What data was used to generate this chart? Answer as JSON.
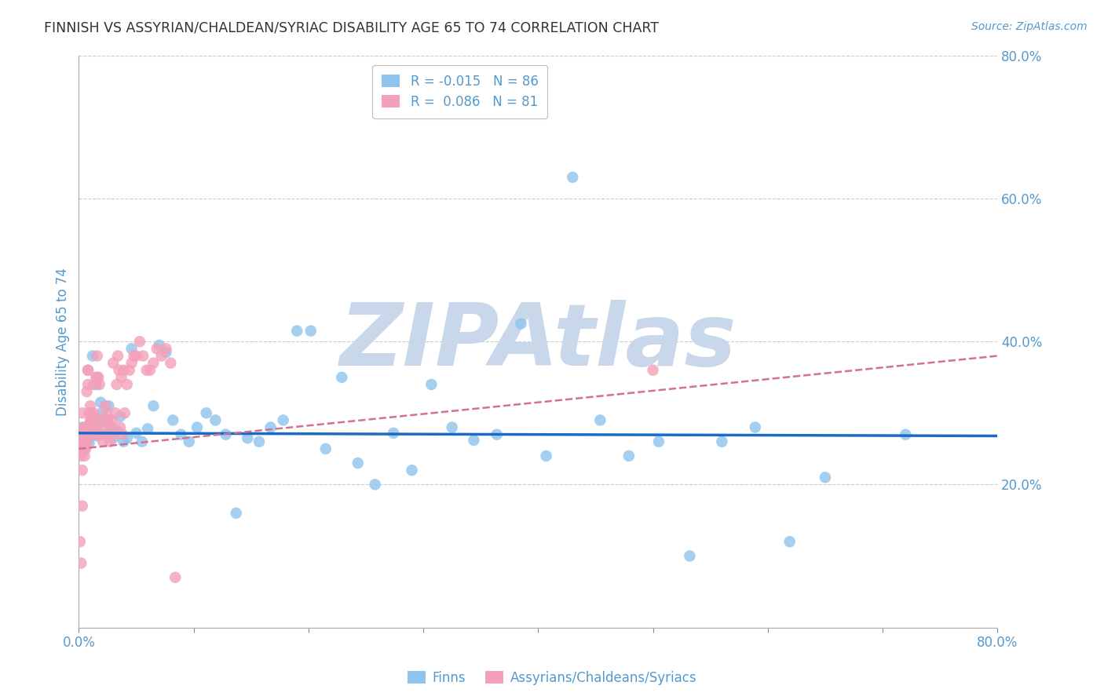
{
  "title": "FINNISH VS ASSYRIAN/CHALDEAN/SYRIAC DISABILITY AGE 65 TO 74 CORRELATION CHART",
  "source": "Source: ZipAtlas.com",
  "ylabel": "Disability Age 65 to 74",
  "xlim": [
    0.0,
    0.8
  ],
  "ylim": [
    0.0,
    0.8
  ],
  "yticks_right": [
    0.2,
    0.4,
    0.6,
    0.8
  ],
  "ytick_right_labels": [
    "20.0%",
    "40.0%",
    "60.0%",
    "80.0%"
  ],
  "grid_color": "#cccccc",
  "background_color": "#ffffff",
  "finn_color": "#8EC4EE",
  "assyrian_color": "#F4A0B8",
  "finn_line_color": "#1A6AC8",
  "assyrian_line_color": "#D47090",
  "finn_R": -0.015,
  "finn_N": 86,
  "assyrian_R": 0.086,
  "assyrian_N": 81,
  "watermark": "ZIPAtlas",
  "watermark_color": "#c8d8ea",
  "finn_label": "Finns",
  "assyrian_label": "Assyrians/Chaldeans/Syriacs",
  "title_color": "#333333",
  "axis_label_color": "#5599cc",
  "tick_color": "#5599cc",
  "finn_scatter_x": [
    0.001,
    0.002,
    0.002,
    0.003,
    0.003,
    0.003,
    0.004,
    0.004,
    0.004,
    0.005,
    0.005,
    0.005,
    0.006,
    0.006,
    0.006,
    0.007,
    0.007,
    0.007,
    0.008,
    0.008,
    0.009,
    0.009,
    0.01,
    0.01,
    0.011,
    0.012,
    0.013,
    0.014,
    0.015,
    0.016,
    0.017,
    0.018,
    0.019,
    0.02,
    0.022,
    0.024,
    0.026,
    0.028,
    0.03,
    0.033,
    0.036,
    0.039,
    0.042,
    0.046,
    0.05,
    0.055,
    0.06,
    0.065,
    0.07,
    0.076,
    0.082,
    0.089,
    0.096,
    0.103,
    0.111,
    0.119,
    0.128,
    0.137,
    0.147,
    0.157,
    0.167,
    0.178,
    0.19,
    0.202,
    0.215,
    0.229,
    0.243,
    0.258,
    0.274,
    0.29,
    0.307,
    0.325,
    0.344,
    0.364,
    0.385,
    0.407,
    0.43,
    0.454,
    0.479,
    0.505,
    0.532,
    0.56,
    0.589,
    0.619,
    0.65,
    0.72
  ],
  "finn_scatter_y": [
    0.265,
    0.272,
    0.258,
    0.27,
    0.262,
    0.28,
    0.268,
    0.255,
    0.275,
    0.27,
    0.26,
    0.278,
    0.265,
    0.272,
    0.258,
    0.268,
    0.275,
    0.262,
    0.27,
    0.28,
    0.265,
    0.258,
    0.272,
    0.285,
    0.268,
    0.38,
    0.27,
    0.275,
    0.34,
    0.268,
    0.272,
    0.285,
    0.315,
    0.3,
    0.27,
    0.29,
    0.31,
    0.28,
    0.265,
    0.275,
    0.295,
    0.26,
    0.265,
    0.39,
    0.272,
    0.26,
    0.278,
    0.31,
    0.395,
    0.385,
    0.29,
    0.27,
    0.26,
    0.28,
    0.3,
    0.29,
    0.27,
    0.16,
    0.265,
    0.26,
    0.28,
    0.29,
    0.415,
    0.415,
    0.25,
    0.35,
    0.23,
    0.2,
    0.272,
    0.22,
    0.34,
    0.28,
    0.262,
    0.27,
    0.425,
    0.24,
    0.63,
    0.29,
    0.24,
    0.26,
    0.1,
    0.26,
    0.28,
    0.12,
    0.21,
    0.27
  ],
  "assyrian_scatter_x": [
    0.001,
    0.001,
    0.002,
    0.002,
    0.002,
    0.003,
    0.003,
    0.003,
    0.004,
    0.004,
    0.004,
    0.005,
    0.005,
    0.005,
    0.006,
    0.006,
    0.006,
    0.007,
    0.007,
    0.007,
    0.008,
    0.008,
    0.008,
    0.009,
    0.009,
    0.009,
    0.01,
    0.01,
    0.01,
    0.011,
    0.011,
    0.012,
    0.012,
    0.013,
    0.013,
    0.014,
    0.014,
    0.015,
    0.015,
    0.016,
    0.016,
    0.017,
    0.018,
    0.019,
    0.02,
    0.021,
    0.022,
    0.023,
    0.024,
    0.025,
    0.026,
    0.027,
    0.028,
    0.029,
    0.03,
    0.031,
    0.032,
    0.033,
    0.034,
    0.035,
    0.036,
    0.037,
    0.038,
    0.039,
    0.04,
    0.042,
    0.044,
    0.046,
    0.048,
    0.05,
    0.053,
    0.056,
    0.059,
    0.062,
    0.065,
    0.068,
    0.072,
    0.076,
    0.08,
    0.084,
    0.5
  ],
  "assyrian_scatter_y": [
    0.27,
    0.12,
    0.09,
    0.25,
    0.24,
    0.17,
    0.22,
    0.3,
    0.26,
    0.28,
    0.27,
    0.25,
    0.24,
    0.26,
    0.28,
    0.27,
    0.25,
    0.26,
    0.28,
    0.33,
    0.36,
    0.36,
    0.34,
    0.3,
    0.28,
    0.27,
    0.31,
    0.29,
    0.3,
    0.28,
    0.29,
    0.27,
    0.28,
    0.3,
    0.34,
    0.28,
    0.29,
    0.35,
    0.27,
    0.38,
    0.35,
    0.35,
    0.34,
    0.27,
    0.29,
    0.26,
    0.28,
    0.31,
    0.3,
    0.29,
    0.27,
    0.26,
    0.28,
    0.29,
    0.37,
    0.27,
    0.3,
    0.34,
    0.38,
    0.36,
    0.28,
    0.35,
    0.27,
    0.36,
    0.3,
    0.34,
    0.36,
    0.37,
    0.38,
    0.38,
    0.4,
    0.38,
    0.36,
    0.36,
    0.37,
    0.39,
    0.38,
    0.39,
    0.37,
    0.07,
    0.36
  ]
}
